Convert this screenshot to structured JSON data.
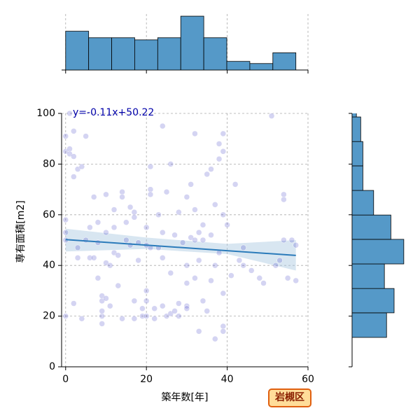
{
  "chart_data": {
    "type": "scatter",
    "x_label": "築年数[年]",
    "y_label": "専有面積[m2]",
    "annotation": "y=-0.11x+50.22",
    "badge": "岩槻区",
    "xlim": [
      -1,
      60
    ],
    "ylim": [
      0,
      100
    ],
    "xticks": [
      0,
      20,
      40,
      60
    ],
    "yticks": [
      0,
      20,
      40,
      60,
      80,
      100
    ],
    "grid": true,
    "color": "#3b3bc4",
    "x": [
      0,
      0,
      1,
      1,
      2,
      2,
      2,
      3,
      0,
      0,
      0,
      0,
      1,
      2,
      3,
      3,
      4,
      4,
      5,
      6,
      6,
      7,
      7,
      8,
      8,
      9,
      9,
      9,
      9,
      9,
      10,
      10,
      10,
      10,
      11,
      11,
      12,
      12,
      12,
      13,
      14,
      14,
      14,
      15,
      15,
      16,
      17,
      17,
      17,
      17,
      18,
      18,
      19,
      19,
      20,
      20,
      20,
      20,
      21,
      21,
      21,
      21,
      22,
      22,
      23,
      23,
      24,
      24,
      24,
      25,
      25,
      26,
      26,
      26,
      27,
      27,
      28,
      28,
      28,
      29,
      30,
      30,
      30,
      30,
      30,
      31,
      31,
      32,
      32,
      32,
      33,
      33,
      33,
      34,
      34,
      34,
      35,
      35,
      36,
      36,
      36,
      37,
      37,
      37,
      38,
      38,
      38,
      39,
      39,
      39,
      39,
      39,
      39,
      40,
      41,
      42,
      43,
      44,
      46,
      48,
      49,
      51,
      53,
      54,
      54,
      54,
      55,
      56,
      57,
      57,
      52,
      24,
      32,
      16,
      5,
      20,
      8,
      13,
      44
    ],
    "y": [
      91,
      85,
      86,
      84,
      93,
      83,
      75,
      78,
      50,
      58,
      53,
      20,
      100,
      25,
      43,
      47,
      19,
      79,
      91,
      55,
      43,
      67,
      43,
      49,
      57,
      20,
      22,
      26,
      28,
      17,
      68,
      41,
      27,
      53,
      40,
      24,
      62,
      55,
      45,
      32,
      69,
      67,
      19,
      50,
      57,
      63,
      61,
      59,
      26,
      19,
      42,
      49,
      23,
      20,
      30,
      26,
      20,
      55,
      70,
      68,
      79,
      47,
      19,
      23,
      60,
      47,
      95,
      43,
      24,
      69,
      20,
      80,
      37,
      21,
      52,
      22,
      61,
      25,
      20,
      49,
      67,
      40,
      33,
      24,
      23,
      72,
      51,
      92,
      62,
      35,
      53,
      14,
      42,
      50,
      56,
      26,
      22,
      76,
      78,
      52,
      34,
      64,
      40,
      11,
      88,
      45,
      82,
      92,
      85,
      60,
      16,
      14,
      29,
      56,
      36,
      72,
      42,
      47,
      38,
      35,
      33,
      99,
      42,
      68,
      66,
      50,
      35,
      50,
      34,
      48,
      40,
      53,
      50,
      48,
      50,
      48,
      35,
      44,
      40
    ],
    "fit": {
      "slope": -0.11,
      "intercept": 50.22,
      "x_range": [
        0,
        57
      ],
      "color": "#2b7bba"
    },
    "band": {
      "x": [
        0,
        20,
        40,
        57
      ],
      "lower": [
        45.5,
        46.5,
        44.5,
        38
      ],
      "upper": [
        54.5,
        51,
        48.5,
        50
      ]
    },
    "top_histogram": {
      "bins": [
        0,
        5.7,
        11.4,
        17.1,
        22.8,
        28.5,
        34.2,
        39.9,
        45.6,
        51.3,
        57
      ],
      "counts": [
        18,
        15,
        15,
        14,
        15,
        25,
        15,
        4,
        3,
        8
      ],
      "count_lim": [
        0,
        26
      ],
      "color": "#5599c8"
    },
    "right_histogram": {
      "bins": [
        11.6,
        21.3,
        30.9,
        40.6,
        50.3,
        59.9,
        69.6,
        79.3,
        88.9,
        98.6,
        108.3
      ],
      "counts": [
        16,
        19.5,
        15,
        24,
        18,
        10,
        5,
        5,
        4,
        2
      ],
      "count_lim": [
        0,
        26
      ],
      "color": "#5599c8"
    }
  }
}
